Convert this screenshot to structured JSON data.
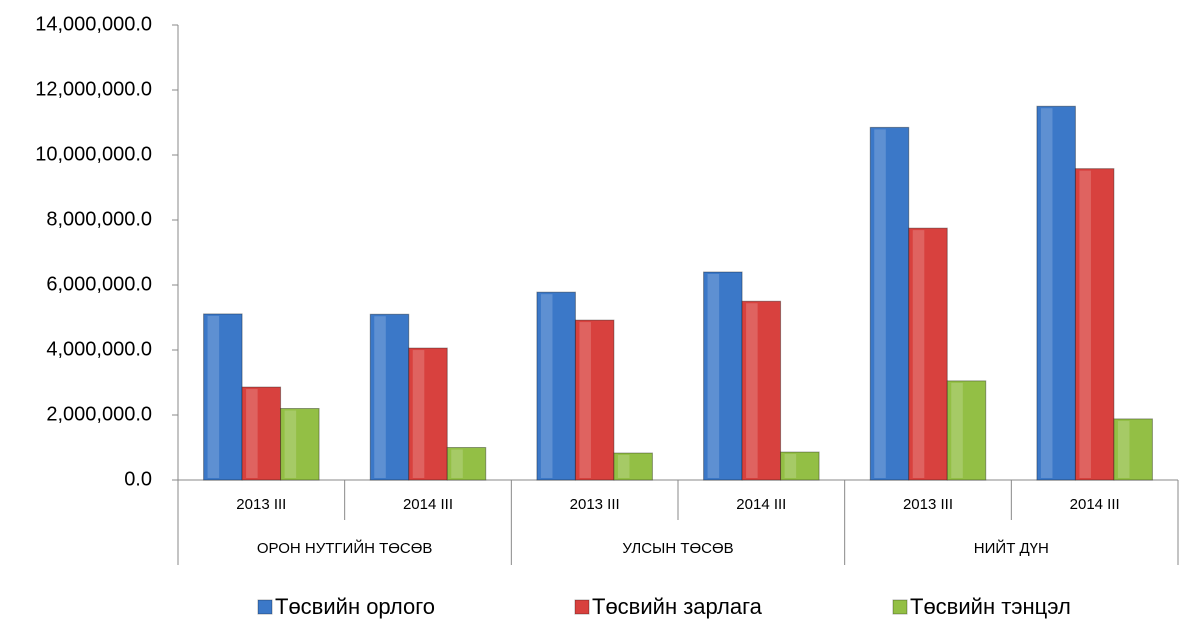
{
  "chart_data": {
    "type": "bar",
    "categories": [
      "2013 III",
      "2014 III",
      "2013 III",
      "2014 III",
      "2013 III",
      "2014 III"
    ],
    "groups": [
      "ОРОН НУТГИЙН ТӨСӨВ",
      "УЛСЫН ТӨСӨВ",
      "НИЙТ ДҮН"
    ],
    "series": [
      {
        "name": "Төсвийн орлого",
        "color": "#3b78c8",
        "values": [
          5110000,
          5100000,
          5780000,
          6400000,
          10850000,
          11500000
        ]
      },
      {
        "name": "Төсвийн зарлага",
        "color": "#d8413e",
        "values": [
          2860000,
          4060000,
          4920000,
          5500000,
          7750000,
          9580000
        ]
      },
      {
        "name": "Төсвийн тэнцэл",
        "color": "#93bf45",
        "values": [
          2200000,
          1000000,
          830000,
          860000,
          3050000,
          1880000
        ]
      }
    ],
    "ylim": [
      0,
      14000000
    ],
    "yticks": [
      {
        "value": 0,
        "label": "0.0"
      },
      {
        "value": 2000000,
        "label": "2,000,000.0"
      },
      {
        "value": 4000000,
        "label": "4,000,000.0"
      },
      {
        "value": 6000000,
        "label": "6,000,000.0"
      },
      {
        "value": 8000000,
        "label": "8,000,000.0"
      },
      {
        "value": 10000000,
        "label": "10,000,000.0"
      },
      {
        "value": 12000000,
        "label": "12,000,000.0"
      },
      {
        "value": 14000000,
        "label": "14,000,000.0"
      }
    ],
    "legend": "bottom"
  }
}
